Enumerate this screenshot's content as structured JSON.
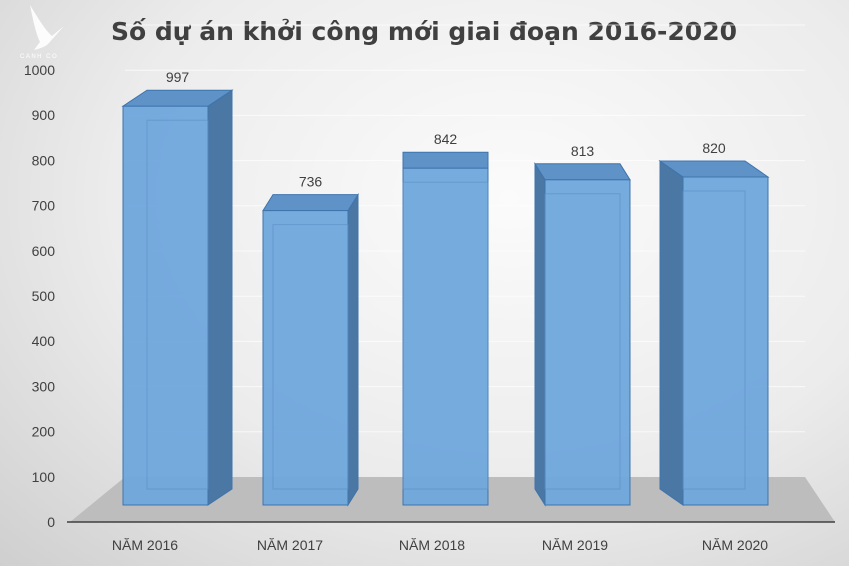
{
  "logo_text": "CANH CO",
  "chart_data": {
    "type": "bar",
    "style": "3d-column",
    "title": "Số dự án khởi công mới giai đoạn 2016-2020",
    "categories": [
      "NĂM 2016",
      "NĂM 2017",
      "NĂM 2018",
      "NĂM 2019",
      "NĂM 2020"
    ],
    "values": [
      997,
      736,
      842,
      813,
      820
    ],
    "data_labels": [
      "997",
      "736",
      "842",
      "813",
      "820"
    ],
    "ylim": [
      0,
      1000
    ],
    "yticks": [
      "0",
      "100",
      "200",
      "300",
      "400",
      "500",
      "600",
      "700",
      "800",
      "900",
      "1000"
    ],
    "grid": true,
    "legend": "none",
    "colors": {
      "bar_front": "#6fa6dc",
      "bar_side": "#4a77a3",
      "bar_edge": "#3f74ad",
      "floor": "#bdbdbd"
    }
  }
}
